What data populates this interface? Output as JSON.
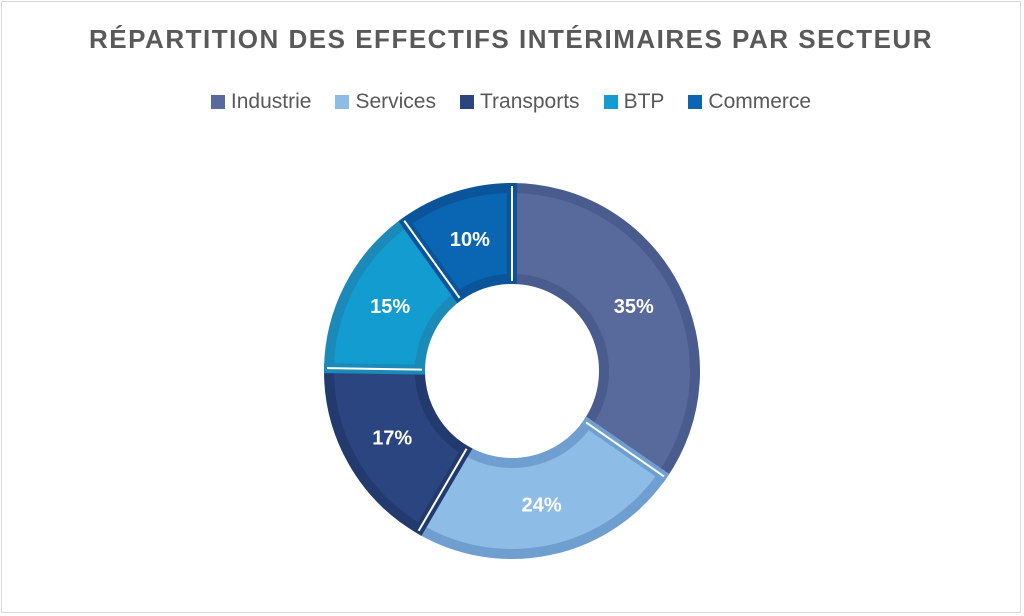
{
  "chart_data": {
    "type": "pie",
    "subtype": "donut",
    "title": "RÉPARTITION DES EFFECTIFS INTÉRIMAIRES PAR SECTEUR",
    "legend_position": "top",
    "categories": [
      "Industrie",
      "Services",
      "Transports",
      "BTP",
      "Commerce"
    ],
    "values": [
      35,
      24,
      17,
      15,
      10
    ],
    "labels": [
      "35%",
      "24%",
      "17%",
      "15%",
      "10%"
    ],
    "colors": [
      "#58699c",
      "#8dbce6",
      "#2a4580",
      "#129ccf",
      "#0a66b2"
    ],
    "border_colors": [
      "#4a5b8e",
      "#6f9fd0",
      "#233a6e",
      "#1b8ab8",
      "#0a559a"
    ]
  }
}
